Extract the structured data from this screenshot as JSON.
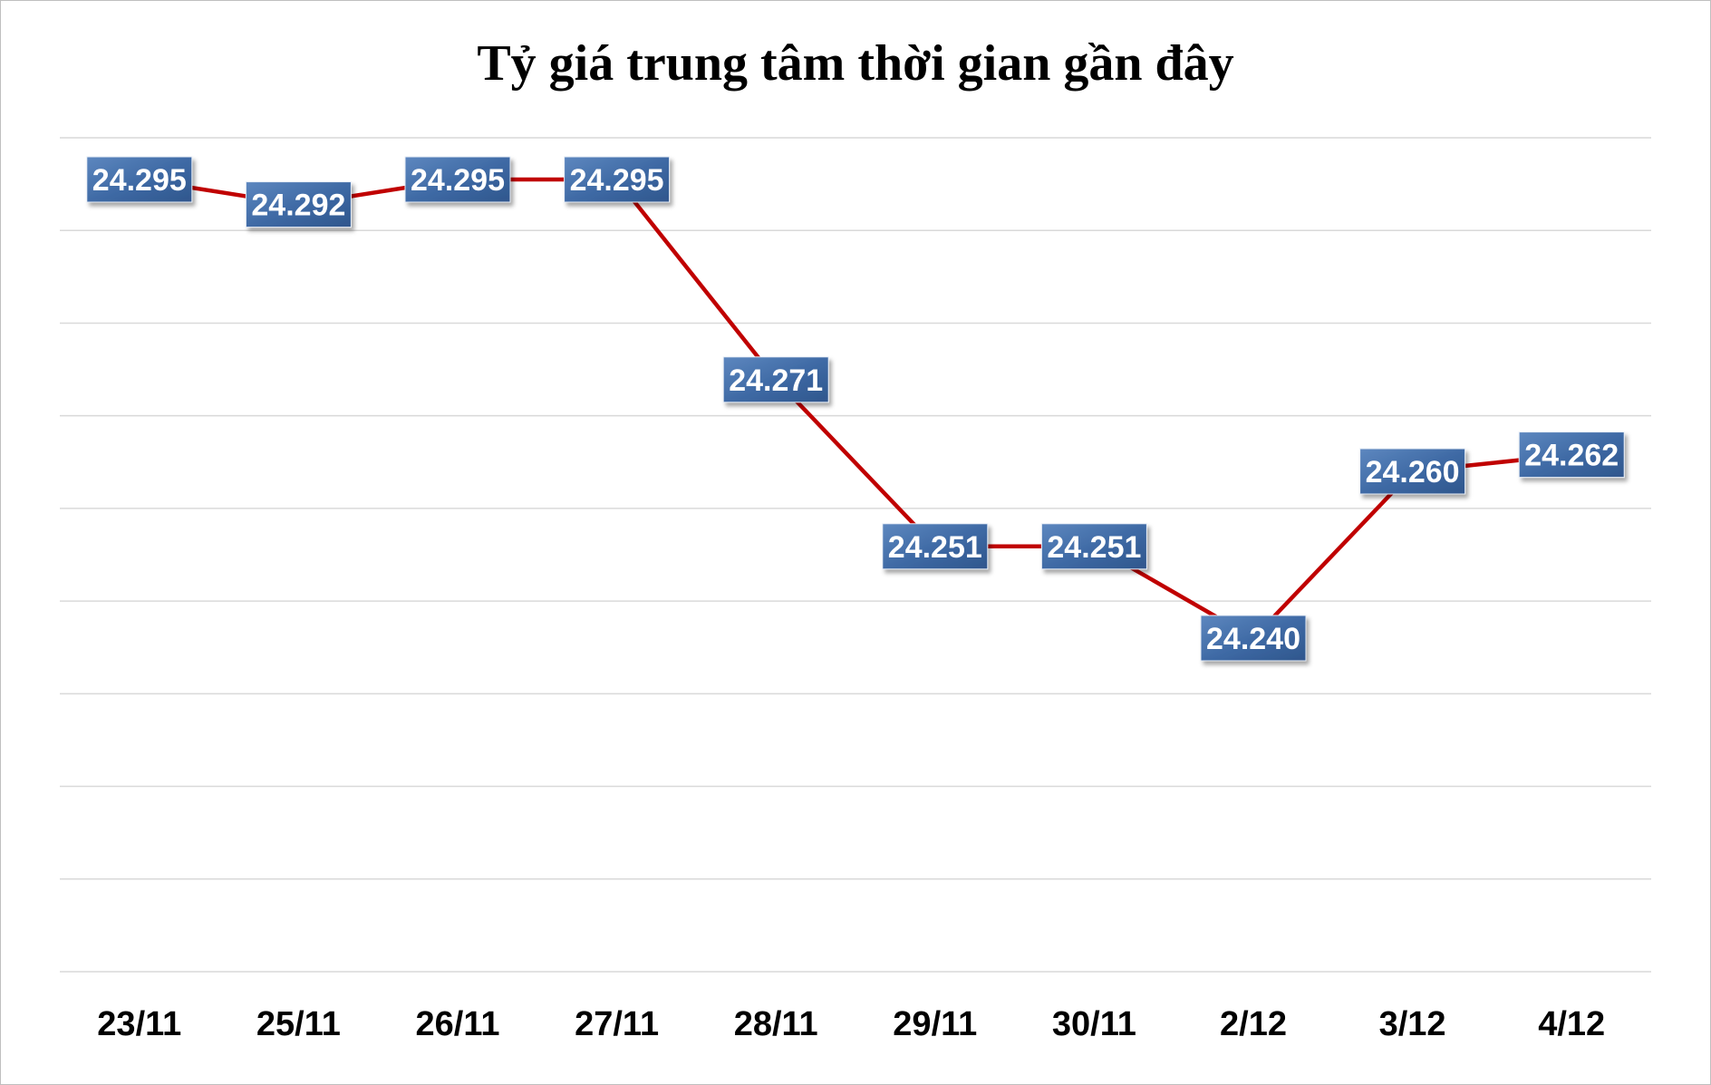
{
  "chart_data": {
    "type": "line",
    "title": "Tỷ giá trung tâm thời gian gần đây",
    "categories": [
      "23/11",
      "25/11",
      "26/11",
      "27/11",
      "28/11",
      "29/11",
      "30/11",
      "2/12",
      "3/12",
      "4/12"
    ],
    "series": [
      {
        "values": [
          24295,
          24292,
          24295,
          24295,
          24271,
          24251,
          24251,
          24240,
          24260,
          24262
        ],
        "labels": [
          "24.295",
          "24.292",
          "24.295",
          "24.295",
          "24.271",
          "24.251",
          "24.251",
          "24.240",
          "24.260",
          "24.262"
        ],
        "color": "#c00000"
      }
    ],
    "xlabel": "",
    "ylabel": "",
    "ylim": [
      24200,
      24300
    ],
    "gridlines": 9,
    "grid": true,
    "legend": "none",
    "label_color": "#3f6aa3"
  }
}
